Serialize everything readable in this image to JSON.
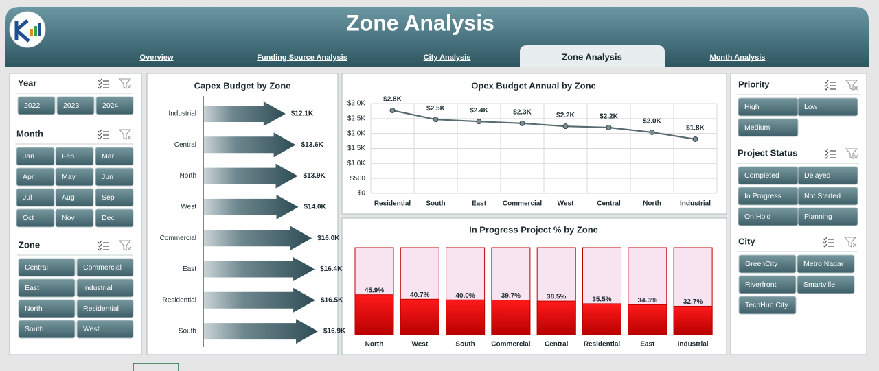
{
  "header": {
    "title": "Zone Analysis"
  },
  "tabs": {
    "items": [
      "Overview",
      "Funding Source Analysis",
      "City Analysis",
      "Zone Analysis",
      "Month Analysis"
    ],
    "active": 3
  },
  "slicers": [
    {
      "title": "Year",
      "items": [
        "2022",
        "2023",
        "2024"
      ]
    },
    {
      "title": "Month",
      "items": [
        "Jan",
        "Feb",
        "Mar",
        "Apr",
        "May",
        "Jun",
        "Jul",
        "Aug",
        "Sep",
        "Oct",
        "Nov",
        "Dec"
      ]
    },
    {
      "title": "Zone",
      "items": [
        "Central",
        "Commercial",
        "East",
        "Industrial",
        "North",
        "Residential",
        "South",
        "West"
      ]
    },
    {
      "title": "Priority",
      "items": [
        "High",
        "Low",
        "Medium"
      ]
    },
    {
      "title": "Project Status",
      "items": [
        "Completed",
        "Delayed",
        "In Progress",
        "Not Started",
        "On Hold",
        "Planning"
      ]
    },
    {
      "title": "City",
      "items": [
        "GreenCity",
        "Metro Nagar",
        "Riverfront",
        "Smartville",
        "TechHub City"
      ]
    }
  ],
  "chart_data": [
    {
      "type": "arrowbar",
      "title": "Capex Budget by Zone",
      "categories": [
        "Industrial",
        "Central",
        "North",
        "West",
        "Commercial",
        "East",
        "Residential",
        "South"
      ],
      "values": [
        12100,
        13600,
        13900,
        14000,
        16000,
        16400,
        16500,
        16900
      ],
      "value_labels": [
        "$12.1K",
        "$13.6K",
        "$13.9K",
        "$14.0K",
        "$16.0K",
        "$16.4K",
        "$16.5K",
        "$16.9K"
      ],
      "color": "#2f4d56"
    },
    {
      "type": "line",
      "title": "Opex Budget Annual by Zone",
      "categories": [
        "Residential",
        "South",
        "East",
        "Commercial",
        "West",
        "Central",
        "North",
        "Industrial"
      ],
      "values": [
        2770,
        2470,
        2400,
        2340,
        2240,
        2200,
        2040,
        1810
      ],
      "value_labels": [
        "$2.8K",
        "$2.5K",
        "$2.4K",
        "$2.3K",
        "$2.2K",
        "$2.2K",
        "$2.0K",
        "$1.8K"
      ],
      "color": "#566a70",
      "ylim": [
        0,
        3000
      ],
      "yticks": [
        {
          "value": 0,
          "label": "$0"
        },
        {
          "value": 500,
          "label": "$500"
        },
        {
          "value": 1000,
          "label": "$1.0K"
        },
        {
          "value": 1500,
          "label": "$1.5K"
        },
        {
          "value": 2000,
          "label": "$2.0K"
        },
        {
          "value": 2500,
          "label": "$2.5K"
        },
        {
          "value": 3000,
          "label": "$3.0K"
        }
      ],
      "grid": true
    },
    {
      "type": "bar",
      "title": "In Progress Project % by Zone",
      "categories": [
        "North",
        "West",
        "South",
        "Commercial",
        "Central",
        "Residential",
        "East",
        "Industrial"
      ],
      "values": [
        45.9,
        40.7,
        40.0,
        39.7,
        38.5,
        35.5,
        34.3,
        32.7
      ],
      "value_labels": [
        "45.9%",
        "40.7%",
        "40.0%",
        "39.7%",
        "38.5%",
        "35.5%",
        "34.3%",
        "32.7%"
      ],
      "color": "#e00000",
      "ylim": [
        0,
        100
      ]
    }
  ]
}
